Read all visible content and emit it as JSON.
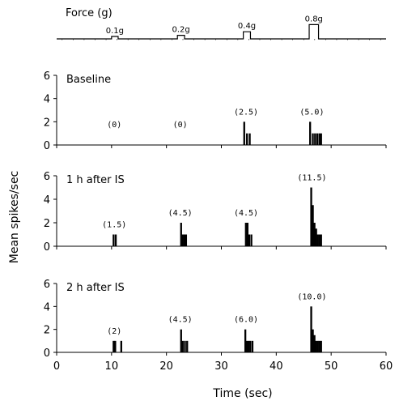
{
  "chart_data": {
    "type": "bar",
    "ylabel": "Mean spikes/sec",
    "xlabel": "Time (sec)",
    "x_ticks": [
      0,
      10,
      20,
      30,
      40,
      50,
      60
    ],
    "y_ticks": [
      0,
      2,
      4,
      6
    ],
    "xlim": [
      0,
      60
    ],
    "ylim": [
      0,
      6
    ],
    "grid": false,
    "legend": "none",
    "force_trace": {
      "title": "Force (g)",
      "pulses": [
        {
          "label": "0.1g",
          "start": 10,
          "end": 11.2,
          "level": 0.1
        },
        {
          "label": "0.2g",
          "start": 22,
          "end": 23.3,
          "level": 0.2
        },
        {
          "label": "0.4g",
          "start": 34,
          "end": 35.3,
          "level": 0.4
        },
        {
          "label": "0.8g",
          "start": 46,
          "end": 47.7,
          "level": 0.8
        }
      ]
    },
    "panels": [
      {
        "title": "Baseline",
        "annotations": [
          {
            "text": "(0)",
            "x": 10.5
          },
          {
            "text": "(0)",
            "x": 22.5
          },
          {
            "text": "(2.5)",
            "x": 34.5
          },
          {
            "text": "(5.0)",
            "x": 46.5
          }
        ],
        "bins": [
          {
            "x": 34.0,
            "y": 2.0
          },
          {
            "x": 34.5,
            "y": 1.0
          },
          {
            "x": 35.0,
            "y": 1.0
          },
          {
            "x": 46.0,
            "y": 2.0
          },
          {
            "x": 46.5,
            "y": 1.0
          },
          {
            "x": 46.9,
            "y": 1.0
          },
          {
            "x": 47.3,
            "y": 1.0
          },
          {
            "x": 47.7,
            "y": 1.0
          },
          {
            "x": 48.0,
            "y": 1.0
          }
        ]
      },
      {
        "title": "1 h after IS",
        "annotations": [
          {
            "text": "(1.5)",
            "x": 10.5
          },
          {
            "text": "(4.5)",
            "x": 22.5
          },
          {
            "text": "(4.5)",
            "x": 34.5
          },
          {
            "text": "(11.5)",
            "x": 46.5
          }
        ],
        "bins": [
          {
            "x": 10.2,
            "y": 1.0
          },
          {
            "x": 10.6,
            "y": 1.0
          },
          {
            "x": 22.5,
            "y": 2.0
          },
          {
            "x": 22.8,
            "y": 1.0
          },
          {
            "x": 23.1,
            "y": 1.0
          },
          {
            "x": 23.4,
            "y": 1.0
          },
          {
            "x": 34.3,
            "y": 2.0
          },
          {
            "x": 34.6,
            "y": 2.0
          },
          {
            "x": 34.9,
            "y": 1.0
          },
          {
            "x": 35.3,
            "y": 1.0
          },
          {
            "x": 46.2,
            "y": 5.0
          },
          {
            "x": 46.5,
            "y": 3.5
          },
          {
            "x": 46.8,
            "y": 2.0
          },
          {
            "x": 47.1,
            "y": 1.5
          },
          {
            "x": 47.4,
            "y": 1.0
          },
          {
            "x": 47.7,
            "y": 1.0
          },
          {
            "x": 48.0,
            "y": 1.0
          }
        ]
      },
      {
        "title": "2 h after IS",
        "annotations": [
          {
            "text": "(2)",
            "x": 10.5
          },
          {
            "text": "(4.5)",
            "x": 22.5
          },
          {
            "text": "(6.0)",
            "x": 34.5
          },
          {
            "text": "(10.0)",
            "x": 46.5
          }
        ],
        "bins": [
          {
            "x": 10.2,
            "y": 1.0
          },
          {
            "x": 10.5,
            "y": 1.0
          },
          {
            "x": 11.6,
            "y": 1.0
          },
          {
            "x": 22.5,
            "y": 2.0
          },
          {
            "x": 22.8,
            "y": 1.0
          },
          {
            "x": 23.2,
            "y": 1.0
          },
          {
            "x": 23.6,
            "y": 1.0
          },
          {
            "x": 34.2,
            "y": 2.0
          },
          {
            "x": 34.5,
            "y": 1.0
          },
          {
            "x": 34.8,
            "y": 1.0
          },
          {
            "x": 35.1,
            "y": 1.0
          },
          {
            "x": 35.5,
            "y": 1.0
          },
          {
            "x": 46.2,
            "y": 4.0
          },
          {
            "x": 46.5,
            "y": 2.0
          },
          {
            "x": 46.8,
            "y": 1.5
          },
          {
            "x": 47.1,
            "y": 1.0
          },
          {
            "x": 47.4,
            "y": 1.0
          },
          {
            "x": 47.7,
            "y": 1.0
          },
          {
            "x": 48.0,
            "y": 1.0
          }
        ]
      }
    ]
  }
}
